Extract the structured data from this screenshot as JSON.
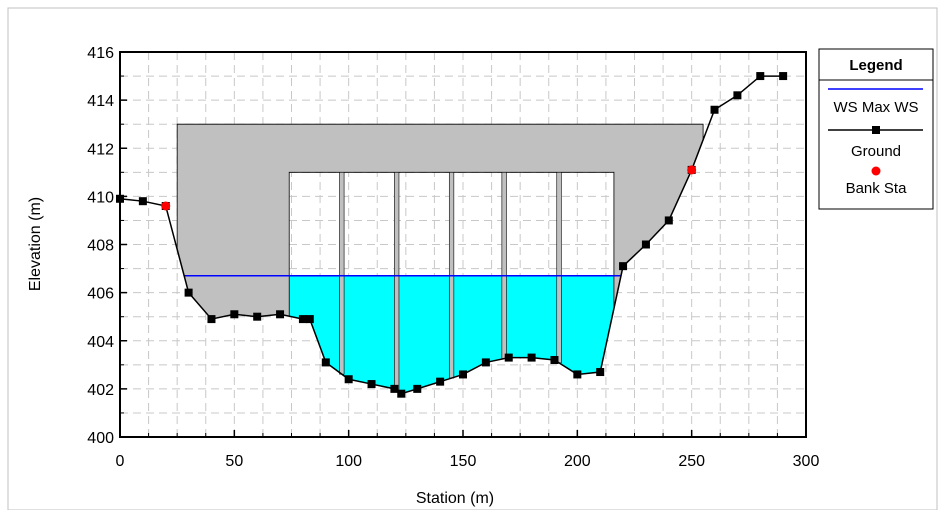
{
  "chart_data": {
    "type": "line",
    "xlabel": "Station (m)",
    "ylabel": "Elevation (m)",
    "xlim": [
      0,
      300
    ],
    "ylim": [
      400,
      416
    ],
    "x_ticks": [
      "0",
      "50",
      "100",
      "150",
      "200",
      "250",
      "300"
    ],
    "y_ticks": [
      "400",
      "402",
      "404",
      "406",
      "408",
      "410",
      "412",
      "414",
      "416"
    ],
    "grid": true,
    "legend": {
      "title": "Legend",
      "placement": "right",
      "entries": [
        "WS Max WS",
        "Ground",
        "Bank Sta"
      ]
    },
    "series": [
      {
        "name": "Ground",
        "color": "#000000",
        "marker": "square",
        "x": [
          0,
          10,
          20,
          30,
          40,
          50,
          60,
          70,
          80,
          83,
          90,
          100,
          110,
          120,
          123,
          130,
          140,
          150,
          160,
          170,
          180,
          190,
          200,
          210,
          220,
          230,
          240,
          250,
          260,
          270,
          280,
          290
        ],
        "y": [
          409.9,
          409.8,
          409.6,
          406.0,
          404.9,
          405.1,
          405.0,
          405.1,
          404.9,
          404.9,
          403.1,
          402.4,
          402.2,
          402.0,
          401.8,
          402.0,
          402.3,
          402.6,
          403.1,
          403.3,
          403.3,
          403.2,
          402.6,
          402.7,
          407.1,
          408.0,
          409.0,
          411.1,
          413.6,
          414.2,
          415.0,
          415.0
        ]
      },
      {
        "name": "WS Max WS",
        "color": "#0000ff",
        "elevation": 406.7
      },
      {
        "name": "Bank Sta",
        "color": "#ff0000",
        "marker": "circle",
        "x": [
          20,
          250
        ],
        "y": [
          409.6,
          411.1
        ]
      }
    ],
    "structure": {
      "deck_top": 413.0,
      "deck_low_chord": 411.0,
      "deck_start": 25,
      "deck_end": 255,
      "opening_start": 74,
      "opening_end": 216,
      "piers": [
        97,
        121,
        145,
        168,
        192
      ],
      "pier_width": 2,
      "deck_color": "#c0c0c0"
    },
    "water_color": "#00ffff"
  }
}
